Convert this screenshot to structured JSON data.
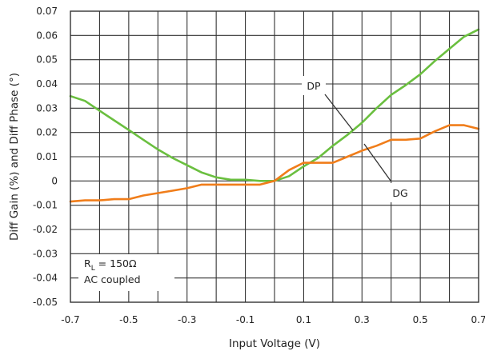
{
  "chart_data": {
    "type": "line",
    "xlabel": "Input Voltage (V)",
    "ylabel": "Diff Gain (%) and Diff Phase (°)",
    "xlim": [
      -0.7,
      0.7
    ],
    "ylim": [
      -0.05,
      0.07
    ],
    "x_ticks": [
      "-0.7",
      "-0.5",
      "-0.3",
      "-0.1",
      "0.1",
      "0.3",
      "0.5",
      "0.7"
    ],
    "y_ticks": [
      "0.07",
      "0.06",
      "0.05",
      "0.04",
      "0.03",
      "0.02",
      "0.01",
      "0",
      "-0.01",
      "-0.02",
      "-0.03",
      "-0.04",
      "-0.05"
    ],
    "grid": true,
    "series": [
      {
        "name": "DP",
        "color": "#6abf3f",
        "x": [
          -0.7,
          -0.65,
          -0.6,
          -0.55,
          -0.5,
          -0.45,
          -0.4,
          -0.35,
          -0.3,
          -0.25,
          -0.2,
          -0.15,
          -0.1,
          -0.05,
          0,
          0.05,
          0.1,
          0.15,
          0.2,
          0.25,
          0.3,
          0.35,
          0.4,
          0.45,
          0.5,
          0.55,
          0.6,
          0.65,
          0.7
        ],
        "values": [
          0.035,
          0.033,
          0.029,
          0.025,
          0.021,
          0.017,
          0.013,
          0.0095,
          0.0065,
          0.0035,
          0.0015,
          0.0005,
          0.0005,
          0,
          0,
          0.002,
          0.006,
          0.0095,
          0.0145,
          0.019,
          0.024,
          0.03,
          0.0355,
          0.0395,
          0.044,
          0.0495,
          0.0545,
          0.0595,
          0.0625
        ]
      },
      {
        "name": "DG",
        "color": "#f07d1a",
        "x": [
          -0.7,
          -0.65,
          -0.6,
          -0.55,
          -0.5,
          -0.45,
          -0.4,
          -0.35,
          -0.3,
          -0.25,
          -0.2,
          -0.15,
          -0.1,
          -0.05,
          0,
          0.05,
          0.1,
          0.15,
          0.2,
          0.25,
          0.3,
          0.35,
          0.4,
          0.45,
          0.5,
          0.55,
          0.6,
          0.65,
          0.7
        ],
        "values": [
          -0.0085,
          -0.008,
          -0.008,
          -0.0075,
          -0.0075,
          -0.006,
          -0.005,
          -0.004,
          -0.003,
          -0.0015,
          -0.0015,
          -0.0015,
          -0.0015,
          -0.0015,
          0,
          0.0045,
          0.0075,
          0.0075,
          0.0075,
          0.01,
          0.0125,
          0.0145,
          0.017,
          0.017,
          0.0175,
          0.0205,
          0.023,
          0.023,
          0.0215
        ]
      }
    ],
    "annotations": {
      "dp_label": "DP",
      "dg_label": "DG",
      "condition_r_main": "R",
      "condition_r_sub": "L",
      "condition_r_value": " = 150Ω",
      "condition_coupling": "AC coupled"
    }
  }
}
